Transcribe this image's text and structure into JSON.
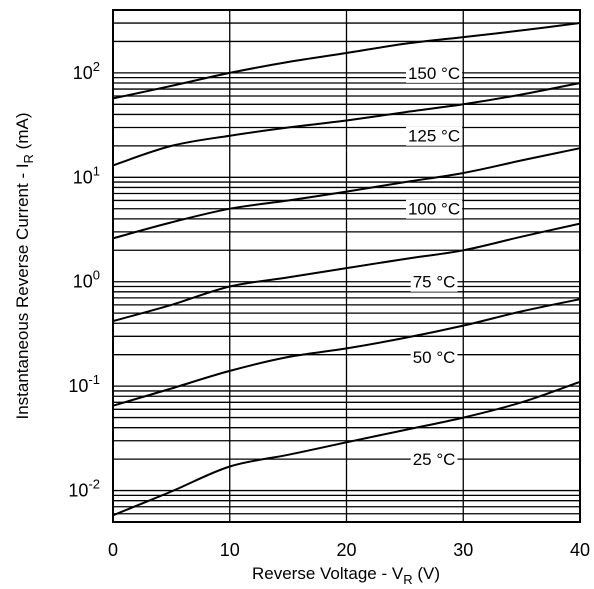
{
  "chart_data": {
    "type": "line",
    "title": "",
    "xlabel": "Reverse Voltage - V_R (V)",
    "ylabel": "Instantaneous Reverse Current - I_R (mA)",
    "x_scale": "linear",
    "y_scale": "log",
    "xlim": [
      0,
      40
    ],
    "ylim": [
      0.005,
      400
    ],
    "grid": true,
    "x_ticks": [
      {
        "value": 0,
        "label": "0"
      },
      {
        "value": 10,
        "label": "10"
      },
      {
        "value": 20,
        "label": "20"
      },
      {
        "value": 30,
        "label": "30"
      },
      {
        "value": 40,
        "label": "40"
      }
    ],
    "y_ticks": [
      {
        "value": 0.01,
        "base": "10",
        "exp": "-2"
      },
      {
        "value": 0.1,
        "base": "10",
        "exp": "-1"
      },
      {
        "value": 1,
        "base": "10",
        "exp": "0"
      },
      {
        "value": 10,
        "base": "10",
        "exp": "1"
      },
      {
        "value": 100,
        "base": "10",
        "exp": "2"
      }
    ],
    "series": [
      {
        "name": "150 °C",
        "label_at": [
          27.5,
          100
        ],
        "x": [
          0,
          5,
          10,
          15,
          20,
          25,
          30,
          35,
          40
        ],
        "y": [
          57,
          75,
          100,
          127,
          155,
          190,
          220,
          255,
          300
        ]
      },
      {
        "name": "125 °C",
        "label_at": [
          27.5,
          25
        ],
        "x": [
          0,
          5,
          10,
          15,
          20,
          25,
          30,
          35,
          40
        ],
        "y": [
          13,
          20,
          25,
          30,
          35,
          42,
          50,
          62,
          80
        ]
      },
      {
        "name": "100 °C",
        "label_at": [
          27.5,
          5
        ],
        "x": [
          0,
          5,
          10,
          15,
          20,
          25,
          30,
          35,
          40
        ],
        "y": [
          2.6,
          3.7,
          5,
          6,
          7.3,
          9,
          11,
          14.5,
          19
        ]
      },
      {
        "name": "75 °C",
        "label_at": [
          27.5,
          1
        ],
        "x": [
          0,
          5,
          10,
          15,
          20,
          25,
          30,
          35,
          40
        ],
        "y": [
          0.42,
          0.6,
          0.9,
          1.1,
          1.35,
          1.65,
          2,
          2.7,
          3.6
        ]
      },
      {
        "name": "50 °C",
        "label_at": [
          27.5,
          0.19
        ],
        "x": [
          0,
          5,
          10,
          15,
          20,
          25,
          30,
          35,
          40
        ],
        "y": [
          0.065,
          0.095,
          0.14,
          0.19,
          0.23,
          0.29,
          0.38,
          0.52,
          0.68
        ]
      },
      {
        "name": "25 °C",
        "label_at": [
          27.5,
          0.02
        ],
        "x": [
          0,
          5,
          10,
          15,
          20,
          25,
          30,
          35,
          40
        ],
        "y": [
          0.0058,
          0.0098,
          0.017,
          0.022,
          0.029,
          0.038,
          0.05,
          0.07,
          0.11
        ]
      }
    ]
  }
}
